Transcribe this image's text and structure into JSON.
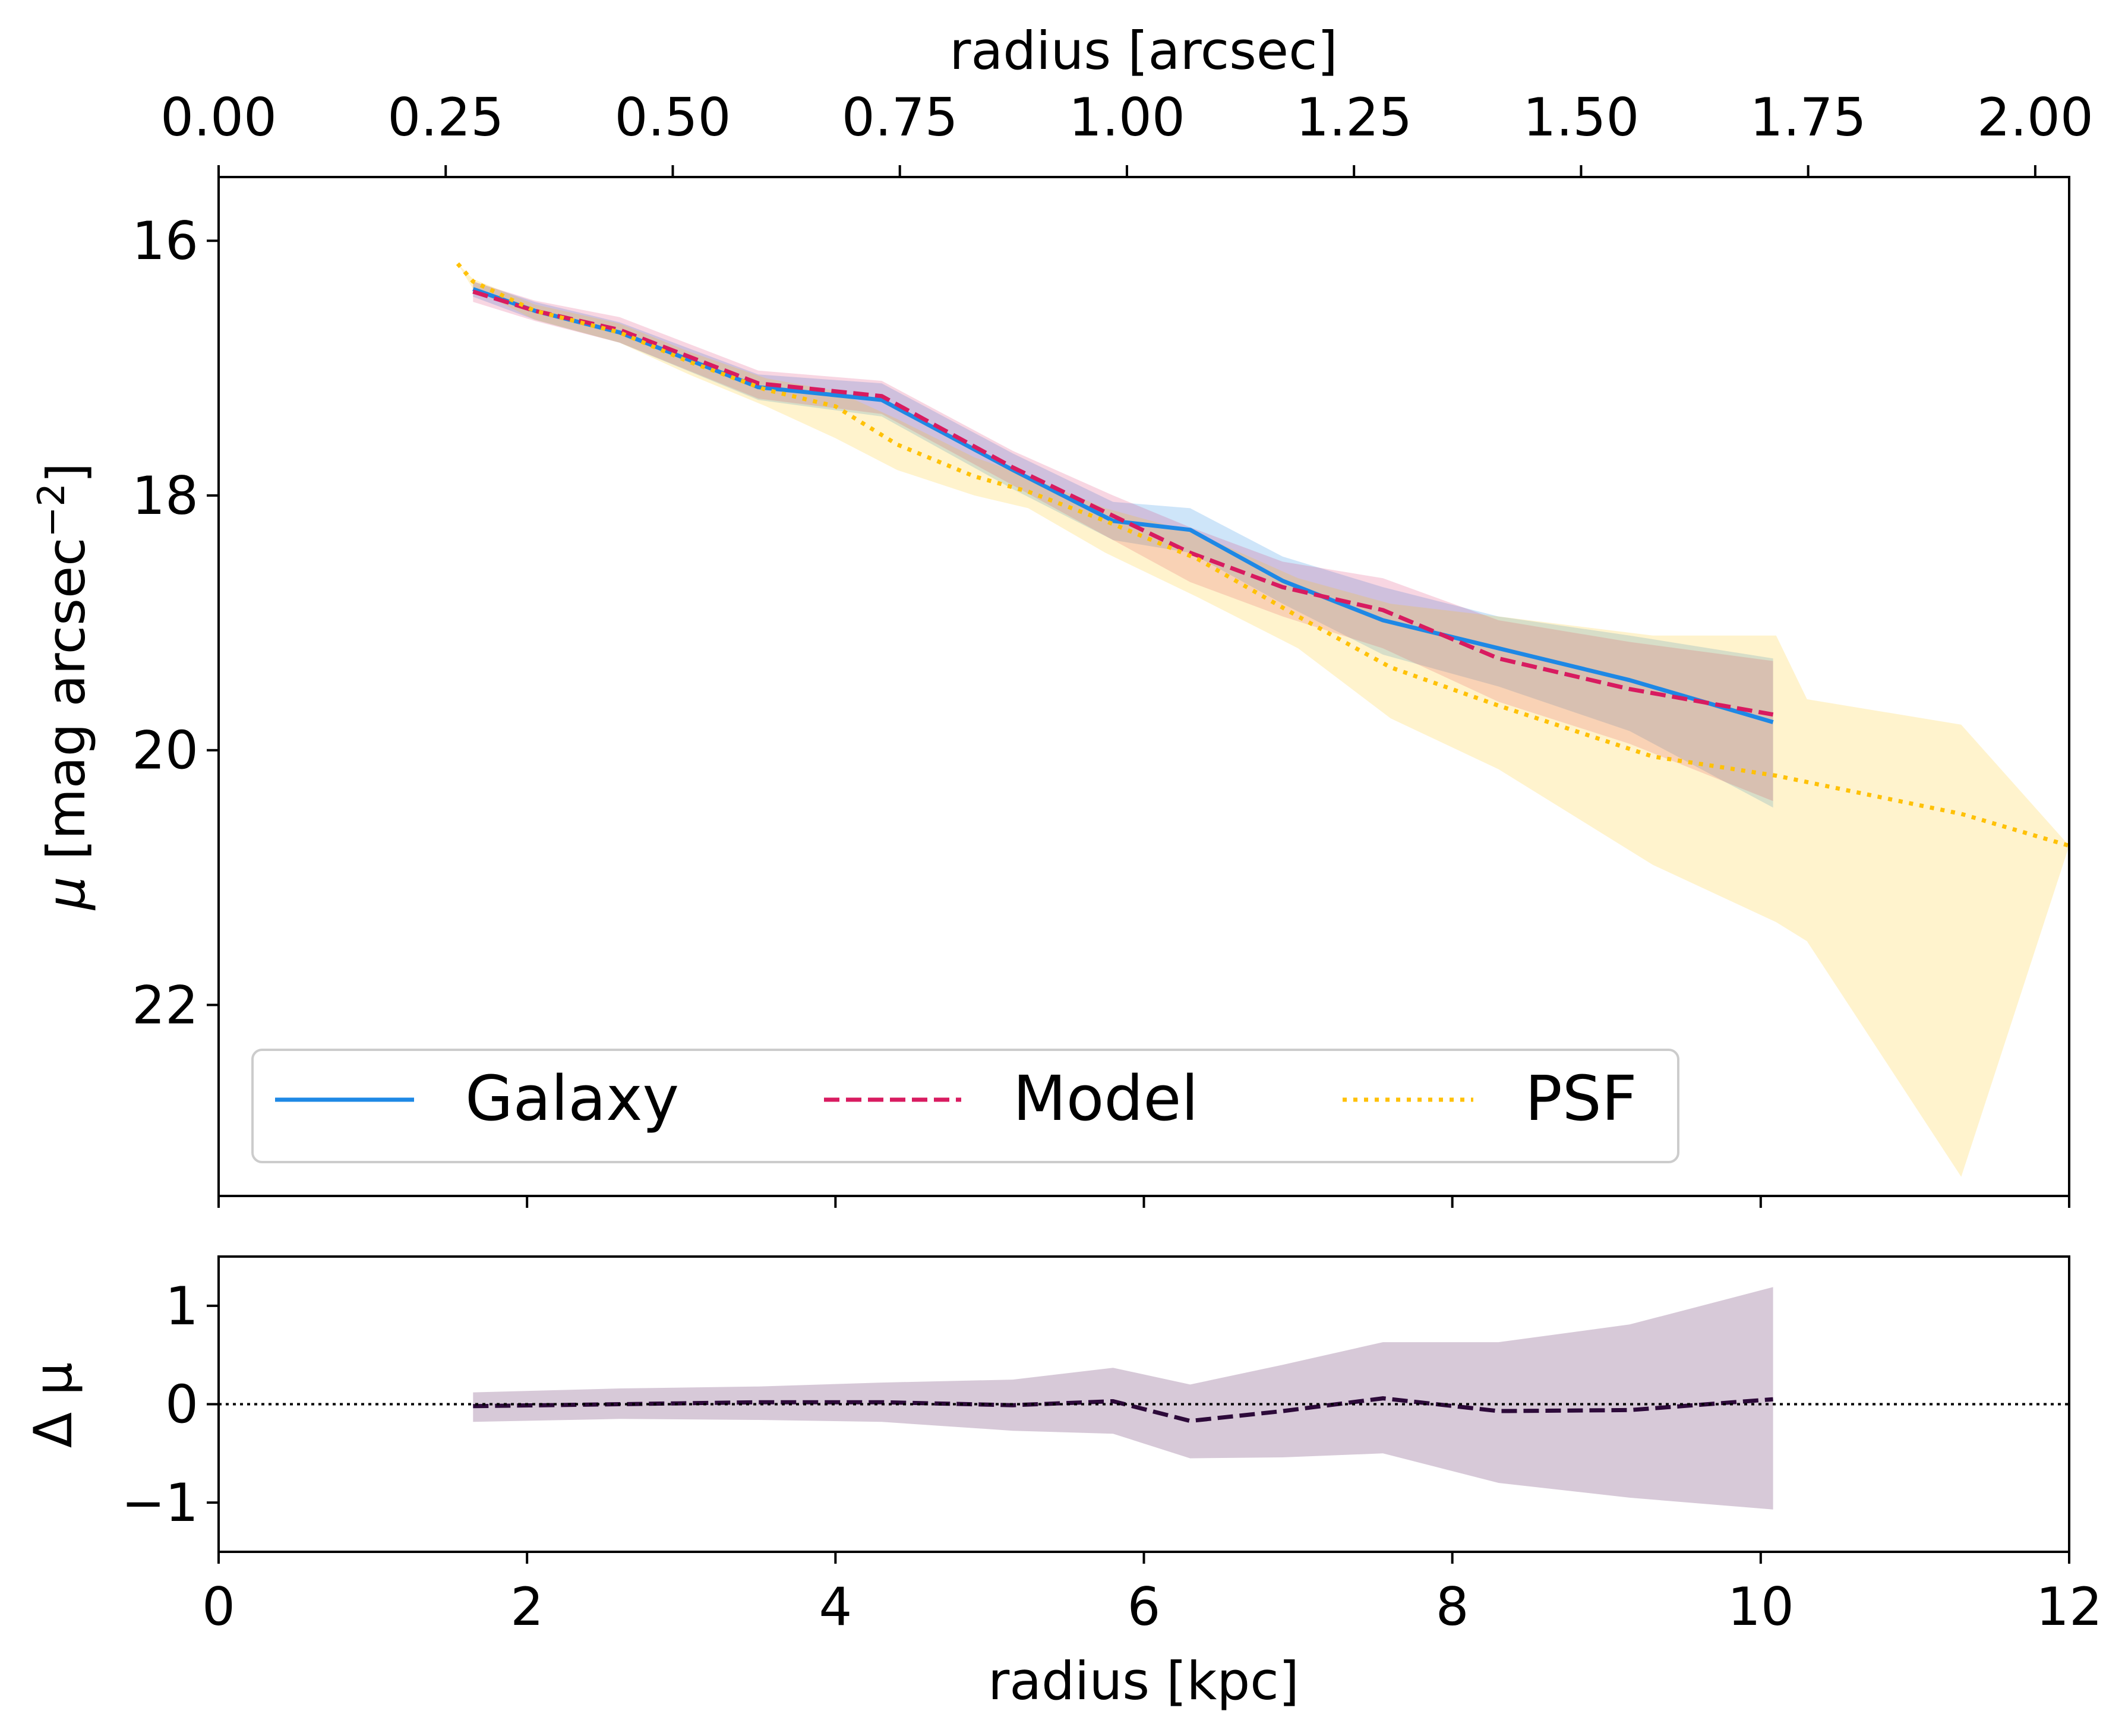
{
  "chart_data": [
    {
      "id": "main",
      "type": "line",
      "title": "",
      "xlabel": "radius [kpc]",
      "ylabel": "μ [mag arcsec−2]",
      "ylabel_parts": {
        "symbol": "μ",
        "text": " [mag arcsec",
        "sup": "−2",
        "close": "]"
      },
      "xlim": [
        0,
        12
      ],
      "ylim": [
        23.5,
        15.5
      ],
      "y_inverted": true,
      "yticks": [
        16,
        18,
        20,
        22
      ],
      "ytick_labels": [
        "16",
        "18",
        "20",
        "22"
      ],
      "xticks": [
        0,
        2,
        4,
        6,
        8,
        10,
        12
      ],
      "top_axis": {
        "label": "radius [arcsec]",
        "kpc_per_arcsec": 5.89,
        "ticks": [
          0.0,
          0.25,
          0.5,
          0.75,
          1.0,
          1.25,
          1.5,
          1.75,
          2.0
        ],
        "tick_labels": [
          "0.00",
          "0.25",
          "0.50",
          "0.75",
          "1.00",
          "1.25",
          "1.50",
          "1.75",
          "2.00"
        ]
      },
      "legend": {
        "placement": "lower-left",
        "entries": [
          {
            "label": "Galaxy",
            "style": "solid",
            "color": "#1e88e5"
          },
          {
            "label": "Model",
            "style": "dashed",
            "color": "#d81b60"
          },
          {
            "label": "PSF",
            "style": "dotted",
            "color": "#ffc107"
          }
        ]
      },
      "series": [
        {
          "name": "Galaxy",
          "color": "#1e88e5",
          "style": "solid",
          "band_color": "#1e88e5",
          "band_opacity": 0.22,
          "x": [
            1.65,
            2.05,
            2.6,
            3.5,
            4.3,
            5.15,
            5.8,
            6.3,
            6.9,
            7.55,
            8.3,
            9.15,
            10.08
          ],
          "y": [
            16.38,
            16.55,
            16.72,
            17.15,
            17.25,
            17.8,
            18.2,
            18.27,
            18.67,
            18.98,
            19.2,
            19.45,
            19.78
          ],
          "lower": [
            16.32,
            16.48,
            16.64,
            17.05,
            17.12,
            17.67,
            18.05,
            18.1,
            18.48,
            18.72,
            18.95,
            19.1,
            19.28
          ],
          "upper": [
            16.44,
            16.62,
            16.8,
            17.25,
            17.38,
            17.95,
            18.35,
            18.45,
            18.85,
            19.25,
            19.5,
            19.85,
            20.45
          ]
        },
        {
          "name": "Model",
          "color": "#d81b60",
          "style": "dashed",
          "band_color": "#d81b60",
          "band_opacity": 0.18,
          "x": [
            1.65,
            2.05,
            2.6,
            3.5,
            4.3,
            5.15,
            5.8,
            6.3,
            6.9,
            7.55,
            8.3,
            9.15,
            10.08
          ],
          "y": [
            16.4,
            16.55,
            16.7,
            17.12,
            17.22,
            17.78,
            18.16,
            18.45,
            18.72,
            18.9,
            19.28,
            19.52,
            19.72
          ],
          "lower": [
            16.32,
            16.47,
            16.6,
            17.02,
            17.1,
            17.65,
            18.0,
            18.25,
            18.52,
            18.65,
            18.98,
            19.15,
            19.3
          ],
          "upper": [
            16.48,
            16.63,
            16.8,
            17.24,
            17.36,
            17.92,
            18.35,
            18.68,
            18.95,
            19.2,
            19.62,
            19.95,
            20.4
          ]
        },
        {
          "name": "PSF",
          "color": "#ffc107",
          "style": "dotted",
          "band_color": "#ffc107",
          "band_opacity": 0.2,
          "x": [
            1.55,
            1.65,
            2.05,
            2.6,
            3.05,
            3.55,
            4.0,
            4.4,
            4.9,
            5.25,
            5.75,
            6.35,
            7.0,
            7.6,
            8.3,
            9.3,
            10.1,
            10.3,
            11.3,
            12.0
          ],
          "y": [
            16.18,
            16.32,
            16.55,
            16.72,
            16.95,
            17.17,
            17.3,
            17.6,
            17.85,
            17.97,
            18.2,
            18.5,
            18.95,
            19.35,
            19.65,
            20.05,
            20.2,
            20.25,
            20.5,
            20.75
          ],
          "lower": [
            16.18,
            16.3,
            16.5,
            16.65,
            16.87,
            17.08,
            17.18,
            17.4,
            17.7,
            17.85,
            18.1,
            18.3,
            18.65,
            18.85,
            18.95,
            19.1,
            19.1,
            19.6,
            19.8,
            20.75
          ],
          "upper": [
            16.18,
            16.38,
            16.62,
            16.8,
            17.05,
            17.3,
            17.55,
            17.8,
            18.0,
            18.1,
            18.45,
            18.8,
            19.2,
            19.75,
            20.15,
            20.9,
            21.35,
            21.5,
            23.35,
            20.75
          ]
        }
      ]
    },
    {
      "id": "residual",
      "type": "line",
      "title": "",
      "xlabel": "radius [kpc]",
      "ylabel": "Δ μ",
      "xlim": [
        0,
        12
      ],
      "ylim": [
        -1.5,
        1.5
      ],
      "yticks": [
        1,
        0,
        -1
      ],
      "ytick_labels": [
        "1",
        "0",
        "−1"
      ],
      "xticks": [
        0,
        2,
        4,
        6,
        8,
        10,
        12
      ],
      "xtick_labels": [
        "0",
        "2",
        "4",
        "6",
        "8",
        "10",
        "12"
      ],
      "reference_line": {
        "y": 0,
        "style": "dotted",
        "color": "#000000"
      },
      "series": [
        {
          "name": "Δμ",
          "color": "#2d0a3a",
          "style": "dashed",
          "band_color": "#6e3d74",
          "band_opacity": 0.28,
          "x": [
            1.65,
            2.6,
            3.5,
            4.3,
            5.15,
            5.8,
            6.3,
            6.9,
            7.55,
            8.3,
            9.15,
            10.08
          ],
          "y": [
            -0.02,
            0.0,
            0.02,
            0.02,
            -0.01,
            0.03,
            -0.17,
            -0.07,
            0.06,
            -0.07,
            -0.06,
            0.05
          ],
          "lower": [
            -0.18,
            -0.15,
            -0.16,
            -0.18,
            -0.27,
            -0.3,
            -0.55,
            -0.54,
            -0.5,
            -0.8,
            -0.95,
            -1.07
          ],
          "upper": [
            0.12,
            0.16,
            0.18,
            0.22,
            0.25,
            0.37,
            0.2,
            0.4,
            0.63,
            0.63,
            0.81,
            1.19
          ]
        }
      ]
    }
  ]
}
